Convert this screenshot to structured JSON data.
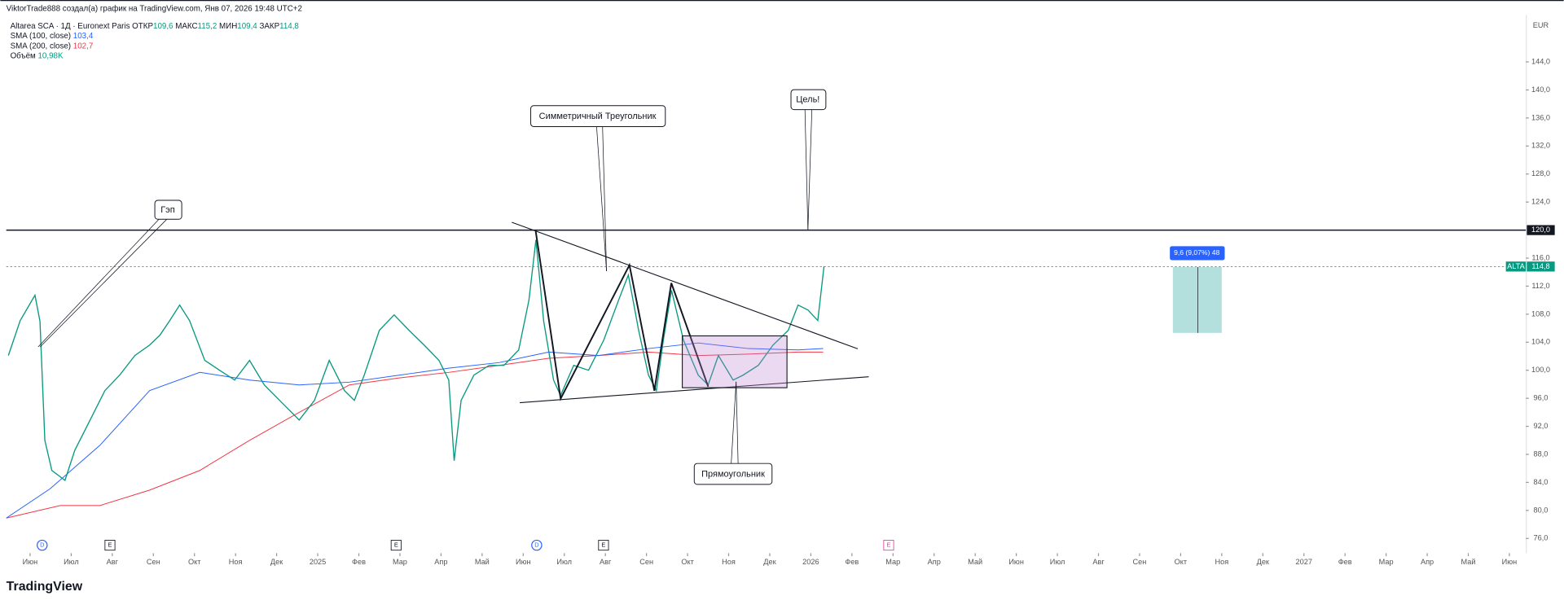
{
  "header": {
    "byline": "ViktorTrade888 создал(а) график на TradingView.com, Янв 07, 2026 19:48 UTC+2",
    "logo": "TradingView"
  },
  "legend": {
    "symbol": "Altarea SCA · 1Д · Euronext Paris",
    "open_label": "ОТКР",
    "open": "109,6",
    "high_label": "МАКС",
    "high": "115,2",
    "low_label": "МИН",
    "low": "109,4",
    "close_label": "ЗАКР",
    "close": "114,8",
    "sma100": "103,4",
    "sma200": "102,7",
    "volume_label": "Объём",
    "volume": "10,98K"
  },
  "annotations": {
    "gap": "Гэп",
    "triangle": "Симметричный Треугольник",
    "target": "Цель!",
    "rectangle": "Прямоугольник",
    "measure": "9,6 (9,07%) 48"
  },
  "events": [
    "D",
    "E",
    "E",
    "D",
    "E",
    "E"
  ],
  "chart_data": {
    "type": "line",
    "currency": "EUR",
    "grid": false,
    "xlim": [
      -0.58,
      36.4
    ],
    "ylim": [
      73.9,
      150.7
    ],
    "xticks": [
      {
        "value": 0,
        "label": "Июн"
      },
      {
        "value": 1,
        "label": "Июл"
      },
      {
        "value": 2,
        "label": "Авг"
      },
      {
        "value": 3,
        "label": "Сен"
      },
      {
        "value": 4,
        "label": "Окт"
      },
      {
        "value": 5,
        "label": "Ноя"
      },
      {
        "value": 6,
        "label": "Дек"
      },
      {
        "value": 7,
        "label": "2025"
      },
      {
        "value": 8,
        "label": "Фев"
      },
      {
        "value": 9,
        "label": "Мар"
      },
      {
        "value": 10,
        "label": "Апр"
      },
      {
        "value": 11,
        "label": "Май"
      },
      {
        "value": 12,
        "label": "Июн"
      },
      {
        "value": 13,
        "label": "Июл"
      },
      {
        "value": 14,
        "label": "Авг"
      },
      {
        "value": 15,
        "label": "Сен"
      },
      {
        "value": 16,
        "label": "Окт"
      },
      {
        "value": 17,
        "label": "Ноя"
      },
      {
        "value": 18,
        "label": "Дек"
      },
      {
        "value": 19,
        "label": "2026"
      },
      {
        "value": 20,
        "label": "Фев"
      },
      {
        "value": 21,
        "label": "Мар"
      },
      {
        "value": 22,
        "label": "Апр"
      },
      {
        "value": 23,
        "label": "Май"
      },
      {
        "value": 24,
        "label": "Июн"
      },
      {
        "value": 25,
        "label": "Июл"
      },
      {
        "value": 26,
        "label": "Авг"
      },
      {
        "value": 27,
        "label": "Сен"
      },
      {
        "value": 28,
        "label": "Окт"
      },
      {
        "value": 29,
        "label": "Ноя"
      },
      {
        "value": 30,
        "label": "Дек"
      },
      {
        "value": 31,
        "label": "2027"
      },
      {
        "value": 32,
        "label": "Фев"
      },
      {
        "value": 33,
        "label": "Мар"
      },
      {
        "value": 34,
        "label": "Апр"
      },
      {
        "value": 35,
        "label": "Май"
      },
      {
        "value": 36,
        "label": "Июн"
      }
    ],
    "yticks": [
      {
        "value": 76,
        "label": "76,0"
      },
      {
        "value": 80,
        "label": "80,0"
      },
      {
        "value": 84,
        "label": "84,0"
      },
      {
        "value": 88,
        "label": "88,0"
      },
      {
        "value": 92,
        "label": "92,0"
      },
      {
        "value": 96,
        "label": "96,0"
      },
      {
        "value": 100,
        "label": "100,0"
      },
      {
        "value": 104,
        "label": "104,0"
      },
      {
        "value": 108,
        "label": "108,0"
      },
      {
        "value": 112,
        "label": "112,0"
      },
      {
        "value": 116,
        "label": "116,0"
      },
      {
        "value": 124,
        "label": "124,0"
      },
      {
        "value": 128,
        "label": "128,0"
      },
      {
        "value": 132,
        "label": "132,0"
      },
      {
        "value": 136,
        "label": "136,0"
      },
      {
        "value": 140,
        "label": "140,0"
      },
      {
        "value": 144,
        "label": "144,0"
      }
    ],
    "levels": [
      {
        "value": 120,
        "label": "120,0"
      }
    ],
    "last_price": {
      "value": 114.8,
      "label": "114,8"
    },
    "series": [
      {
        "name": "ALTA",
        "color": "#089981",
        "x": [
          -0.53,
          -0.24,
          0.12,
          0.24,
          0.36,
          0.53,
          0.85,
          1.09,
          1.46,
          1.82,
          2.18,
          2.55,
          2.91,
          3.16,
          3.4,
          3.64,
          3.88,
          4.25,
          4.61,
          4.98,
          5.34,
          5.7,
          6.19,
          6.55,
          6.92,
          7.28,
          7.65,
          7.89,
          8.13,
          8.5,
          8.86,
          9.22,
          9.59,
          9.95,
          10.19,
          10.32,
          10.49,
          10.8,
          11.17,
          11.53,
          11.89,
          12.14,
          12.31,
          12.5,
          12.74,
          12.91,
          13.23,
          13.59,
          13.96,
          14.32,
          14.56,
          14.81,
          15.05,
          15.24,
          15.41,
          15.61,
          15.9,
          16.26,
          16.5,
          16.75,
          17.11,
          17.35,
          17.72,
          18.08,
          18.45,
          18.69,
          18.93,
          19.17,
          19.32
        ],
        "values": [
          102.1,
          107.1,
          110.7,
          107,
          90,
          85.7,
          84.3,
          88.6,
          92.9,
          97.1,
          99.3,
          102.1,
          103.6,
          105,
          107.1,
          109.3,
          107.1,
          101.4,
          100,
          98.6,
          101.4,
          97.9,
          95,
          92.9,
          95.7,
          101.4,
          97.1,
          95.7,
          99.3,
          105.7,
          107.9,
          105.7,
          103.6,
          101.4,
          98.6,
          87.1,
          95.7,
          99.3,
          100.7,
          100.7,
          102.9,
          110,
          118.6,
          107,
          98.6,
          96.4,
          100.7,
          100,
          104.3,
          110,
          113.6,
          105.7,
          99.3,
          97.1,
          104.3,
          111.4,
          104.3,
          99.3,
          97.9,
          102.1,
          98.6,
          99.3,
          100.7,
          103.6,
          105.7,
          109.3,
          108.6,
          107.1,
          114.8
        ]
      },
      {
        "name": "SMA (100, close)",
        "color": "#2962ff",
        "x": [
          -0.58,
          0.49,
          1.7,
          2.91,
          4.13,
          5.34,
          6.55,
          7.77,
          8.98,
          10.19,
          11.41,
          12.62,
          13.83,
          15.05,
          16.26,
          17.48,
          18.69,
          19.3
        ],
        "values": [
          78.9,
          83.1,
          89.3,
          97.1,
          99.7,
          98.6,
          97.9,
          98.3,
          99.3,
          100.3,
          101.1,
          102.6,
          102.1,
          103.1,
          103.9,
          103.1,
          102.9,
          103.1
        ]
      },
      {
        "name": "SMA (200, close)",
        "color": "#f23645",
        "x": [
          -0.58,
          0.73,
          1.7,
          2.91,
          4.13,
          5.34,
          6.55,
          7.77,
          8.98,
          10.19,
          11.41,
          12.62,
          13.83,
          15.05,
          16.26,
          17.48,
          18.69,
          19.3
        ],
        "values": [
          78.9,
          80.7,
          80.7,
          82.9,
          85.7,
          90,
          94,
          97.9,
          98.9,
          99.7,
          100.7,
          101.7,
          102.1,
          102.6,
          102.1,
          102.3,
          102.6,
          102.6
        ]
      }
    ]
  }
}
